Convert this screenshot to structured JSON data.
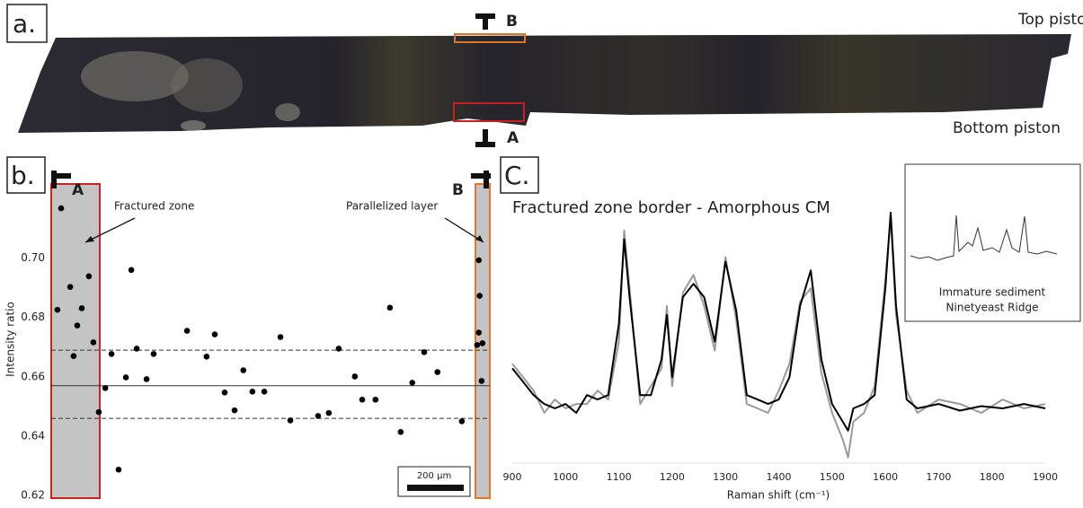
{
  "panel_a": {
    "label": "a.",
    "top_label": "Top piston",
    "bottom_label": "Bottom piston",
    "marker_b": "B",
    "marker_a": "A"
  },
  "chart_data": [
    {
      "type": "scatter",
      "panel_label": "b.",
      "ylabel": "Intensity ratio",
      "annotations": [
        "Fractured zone",
        "Parallelized layer"
      ],
      "zone_labels": [
        "A",
        "B"
      ],
      "scale_bar": "200 µm",
      "color": "#000000",
      "x": [
        22,
        35,
        67,
        79,
        92,
        108,
        133,
        149,
        168,
        191,
        213,
        238,
        264,
        283,
        302,
        337,
        362,
        480,
        549,
        578,
        613,
        648,
        679,
        711,
        753,
        810,
        845,
        943,
        981,
        1016,
        1073,
        1099,
        1146,
        1197,
        1235,
        1276,
        1318,
        1365,
        1451,
        1505,
        1511,
        1514,
        1511,
        1524,
        1521
      ],
      "values": [
        0.6826,
        0.7168,
        0.6903,
        0.667,
        0.6773,
        0.6831,
        0.6939,
        0.6716,
        0.6481,
        0.6562,
        0.6677,
        0.6287,
        0.6598,
        0.696,
        0.6695,
        0.6592,
        0.6677,
        0.6755,
        0.6668,
        0.6743,
        0.6547,
        0.6487,
        0.6622,
        0.655,
        0.655,
        0.6734,
        0.6453,
        0.6468,
        0.6478,
        0.6695,
        0.6601,
        0.6523,
        0.6523,
        0.6833,
        0.6414,
        0.658,
        0.6683,
        0.6616,
        0.645,
        0.6707,
        0.6993,
        0.6873,
        0.6749,
        0.6713,
        0.6586
      ],
      "xlim": [
        0,
        1550
      ],
      "ylim": [
        0.62,
        0.725
      ],
      "yticks": [
        0.62,
        0.64,
        0.66,
        0.68,
        {
          "value": 0.7,
          "label": "0.70"
        }
      ],
      "hlines": [
        {
          "value": 0.669,
          "style": "dashed"
        },
        {
          "value": 0.657,
          "style": "solid"
        },
        {
          "value": 0.646,
          "style": "dashed"
        }
      ]
    },
    {
      "type": "line",
      "panel_label": "C.",
      "title": "Fractured zone border - Amorphous CM",
      "xlabel": "Raman shift (cm⁻¹)",
      "inset_text": [
        "Immature sediment",
        "Ninetyeast Ridge"
      ],
      "x": [
        900,
        920,
        940,
        960,
        980,
        1000,
        1020,
        1040,
        1060,
        1080,
        1100,
        1110,
        1120,
        1140,
        1160,
        1180,
        1190,
        1200,
        1220,
        1240,
        1260,
        1280,
        1300,
        1320,
        1340,
        1360,
        1380,
        1400,
        1420,
        1440,
        1460,
        1480,
        1500,
        1520,
        1530,
        1540,
        1560,
        1580,
        1600,
        1610,
        1620,
        1640,
        1660,
        1700,
        1740,
        1780,
        1820,
        1860,
        1900
      ],
      "series": [
        {
          "color": "#9a9a9a",
          "values": [
            30,
            24,
            18,
            8,
            14,
            10,
            12,
            12,
            18,
            14,
            40,
            90,
            64,
            12,
            20,
            28,
            56,
            20,
            62,
            70,
            56,
            36,
            78,
            50,
            12,
            10,
            8,
            18,
            30,
            58,
            64,
            26,
            8,
            -4,
            -12,
            4,
            8,
            20,
            68,
            96,
            52,
            18,
            8,
            14,
            12,
            8,
            14,
            10,
            12
          ]
        },
        {
          "color": "#000000",
          "values": [
            28,
            22,
            16,
            12,
            10,
            12,
            8,
            16,
            14,
            16,
            48,
            86,
            60,
            16,
            16,
            32,
            52,
            24,
            60,
            66,
            60,
            40,
            76,
            54,
            16,
            14,
            12,
            14,
            24,
            56,
            72,
            32,
            12,
            4,
            0,
            10,
            12,
            16,
            64,
            98,
            56,
            14,
            10,
            12,
            9,
            11,
            10,
            12,
            10
          ]
        }
      ],
      "xlim": [
        900,
        1900
      ],
      "ylim": [
        -15,
        104
      ],
      "xticks": [
        900,
        1000,
        1100,
        1200,
        1300,
        1400,
        1500,
        1600,
        1700,
        1800,
        1900
      ]
    }
  ]
}
